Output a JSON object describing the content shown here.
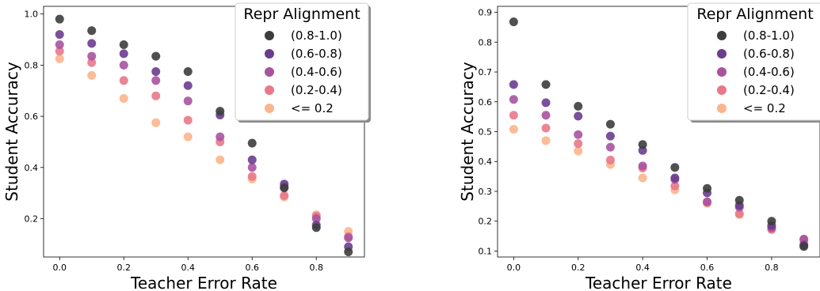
{
  "figure": {
    "panels": [
      "left",
      "right"
    ]
  },
  "chart_data": [
    {
      "type": "scatter",
      "title": "",
      "xlabel": "Teacher Error Rate",
      "ylabel": "Student Accuracy",
      "xlim": [
        -0.05,
        0.95
      ],
      "ylim": [
        0.05,
        1.03
      ],
      "xticks": [
        "0.0",
        "0.2",
        "0.4",
        "0.6",
        "0.8"
      ],
      "yticks": [
        "0.2",
        "0.4",
        "0.6",
        "0.8",
        "1.0"
      ],
      "grid": false,
      "legend": {
        "title": "Repr Alignment",
        "placement": "top-right"
      },
      "x": [
        0.0,
        0.1,
        0.2,
        0.3,
        0.4,
        0.5,
        0.6,
        0.7,
        0.8,
        0.9
      ],
      "series": [
        {
          "name": "(0.8-1.0)",
          "color": "#3d3d3d",
          "values": [
            0.98,
            0.935,
            0.88,
            0.835,
            0.775,
            0.62,
            0.495,
            0.32,
            0.165,
            0.07
          ]
        },
        {
          "name": "(0.6-0.8)",
          "color": "#6a3d8e",
          "values": [
            0.92,
            0.885,
            0.845,
            0.775,
            0.72,
            0.605,
            0.43,
            0.335,
            0.175,
            0.09
          ]
        },
        {
          "name": "(0.4-0.6)",
          "color": "#a853a0",
          "values": [
            0.88,
            0.835,
            0.8,
            0.74,
            0.66,
            0.52,
            0.4,
            0.325,
            0.2,
            0.125
          ]
        },
        {
          "name": "(0.2-0.4)",
          "color": "#e8788a",
          "values": [
            0.855,
            0.81,
            0.74,
            0.68,
            0.585,
            0.5,
            0.365,
            0.29,
            0.21,
            0.13
          ]
        },
        {
          "name": "<= 0.2",
          "color": "#fbb58c",
          "values": [
            0.825,
            0.76,
            0.67,
            0.575,
            0.52,
            0.43,
            0.355,
            0.285,
            0.215,
            0.15
          ]
        }
      ]
    },
    {
      "type": "scatter",
      "title": "",
      "xlabel": "Teacher Error Rate",
      "ylabel": "Student Accuracy",
      "xlim": [
        -0.05,
        0.95
      ],
      "ylim": [
        0.08,
        0.92
      ],
      "xticks": [
        "0.0",
        "0.2",
        "0.4",
        "0.6",
        "0.8"
      ],
      "yticks": [
        "0.1",
        "0.2",
        "0.3",
        "0.4",
        "0.5",
        "0.6",
        "0.7",
        "0.8",
        "0.9"
      ],
      "grid": false,
      "legend": {
        "title": "Repr Alignment",
        "placement": "top-right"
      },
      "x": [
        0.0,
        0.1,
        0.2,
        0.3,
        0.4,
        0.5,
        0.6,
        0.7,
        0.8,
        0.9
      ],
      "series": [
        {
          "name": "(0.8-1.0)",
          "color": "#3d3d3d",
          "values": [
            0.868,
            0.658,
            0.585,
            0.525,
            0.457,
            0.38,
            0.31,
            0.27,
            0.2,
            0.115
          ]
        },
        {
          "name": "(0.6-0.8)",
          "color": "#6a3d8e",
          "values": [
            0.658,
            0.597,
            0.552,
            0.485,
            0.437,
            0.345,
            0.295,
            0.253,
            0.185,
            0.12
          ]
        },
        {
          "name": "(0.4-0.6)",
          "color": "#a853a0",
          "values": [
            0.608,
            0.555,
            0.49,
            0.448,
            0.385,
            0.34,
            0.265,
            0.247,
            0.178,
            0.14
          ]
        },
        {
          "name": "(0.2-0.4)",
          "color": "#e8788a",
          "values": [
            0.555,
            0.512,
            0.46,
            0.405,
            0.378,
            0.318,
            0.263,
            0.225,
            0.172,
            0.138
          ]
        },
        {
          "name": "<= 0.2",
          "color": "#fbb58c",
          "values": [
            0.508,
            0.47,
            0.435,
            0.39,
            0.345,
            0.305,
            0.26,
            0.222,
            0.175,
            0.13
          ]
        }
      ]
    }
  ]
}
